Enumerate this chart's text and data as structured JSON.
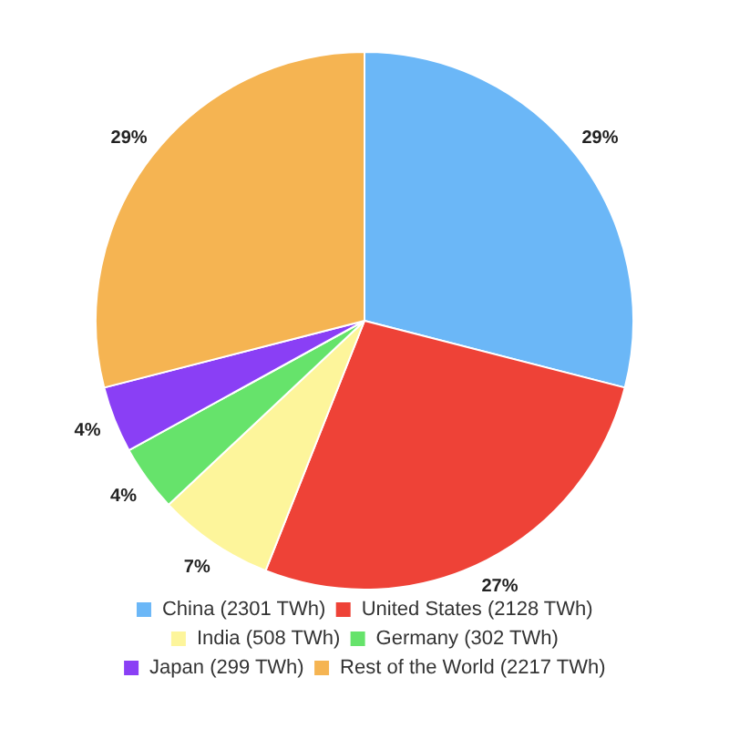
{
  "chart_data": {
    "type": "pie",
    "categories": [
      "China (2301 TWh)",
      "United States (2128 TWh)",
      "India (508 TWh)",
      "Germany (302 TWh)",
      "Japan (299 TWh)",
      "Rest of the World (2217 TWh)"
    ],
    "values": [
      29,
      27,
      7,
      4,
      4,
      29
    ],
    "value_labels": [
      "29%",
      "27%",
      "7%",
      "4%",
      "4%",
      "29%"
    ],
    "colors": [
      "#6bb7f7",
      "#ee4237",
      "#fdf59b",
      "#66e36b",
      "#8a3ff5",
      "#f5b452"
    ],
    "legend": "bottom"
  }
}
